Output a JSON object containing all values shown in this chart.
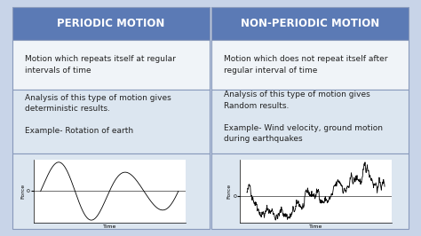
{
  "background_color": "#c8d4e8",
  "header_bg": "#5b7ab5",
  "header_text_color": "#ffffff",
  "cell_bg_light": "#dce6f0",
  "cell_bg_white": "#f0f4f8",
  "text_color": "#222222",
  "col1_header": "PERIODIC MOTION",
  "col2_header": "NON-PERIODIC MOTION",
  "row1_col1": "Motion which repeats itself at regular\nintervals of time",
  "row1_col2": "Motion which does not repeat itself after\nregular interval of time",
  "row2_col1": "Analysis of this type of motion gives\ndeterministic results.\n\nExample- Rotation of earth",
  "row2_col2": "Analysis of this type of motion gives\nRandom results.\n\nExample- Wind velocity, ground motion\nduring earthquakes",
  "fig_width": 4.74,
  "fig_height": 2.66,
  "dpi": 100
}
